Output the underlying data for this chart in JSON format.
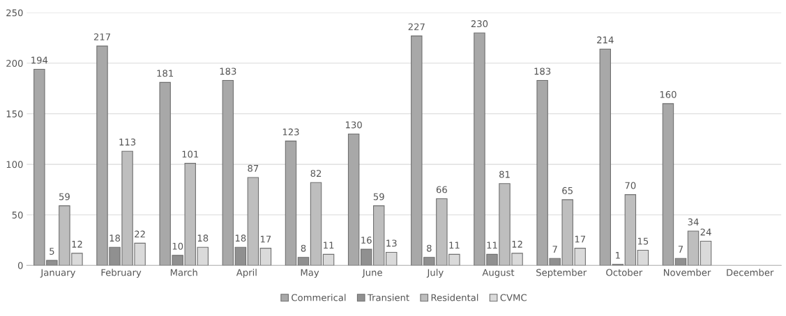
{
  "chart_data": {
    "type": "bar",
    "categories": [
      "January",
      "February",
      "March",
      "April",
      "May",
      "June",
      "July",
      "August",
      "September",
      "October",
      "November",
      "December"
    ],
    "series": [
      {
        "name": "Commerical",
        "color": "#a8a8a8",
        "values": [
          194,
          217,
          181,
          183,
          123,
          130,
          227,
          230,
          183,
          214,
          160,
          null
        ]
      },
      {
        "name": "Transient",
        "color": "#909090",
        "values": [
          5,
          18,
          10,
          18,
          8,
          16,
          8,
          11,
          7,
          1,
          7,
          null
        ]
      },
      {
        "name": "Residental",
        "color": "#bebebe",
        "values": [
          59,
          113,
          101,
          87,
          82,
          59,
          66,
          81,
          65,
          70,
          34,
          null
        ]
      },
      {
        "name": "CVMC",
        "color": "#dadada",
        "values": [
          12,
          22,
          18,
          17,
          11,
          13,
          11,
          12,
          17,
          15,
          24,
          null
        ]
      }
    ],
    "ylim": [
      0,
      250
    ],
    "yticks": [
      0,
      50,
      100,
      150,
      200,
      250
    ],
    "grid": "y",
    "legend": "bottom",
    "data_labels": true
  }
}
